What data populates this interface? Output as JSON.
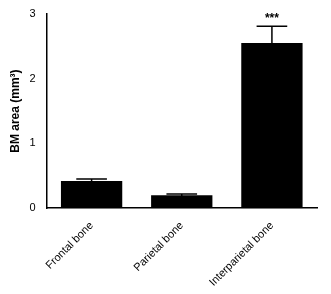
{
  "chart_data": {
    "type": "bar",
    "y_label": "BM area (mm³)",
    "categories": [
      "Frontal bone",
      "Parietal bone",
      "Interparietal bone"
    ],
    "values": [
      0.42,
      0.2,
      2.55
    ],
    "errors": [
      0.03,
      0.02,
      0.26
    ],
    "color": "#000000",
    "ylim": [
      0,
      3
    ],
    "yticks": [
      0,
      1,
      2,
      3
    ],
    "grid": false,
    "annotations": [
      {
        "category": "Interparietal bone",
        "text": "***"
      }
    ]
  }
}
